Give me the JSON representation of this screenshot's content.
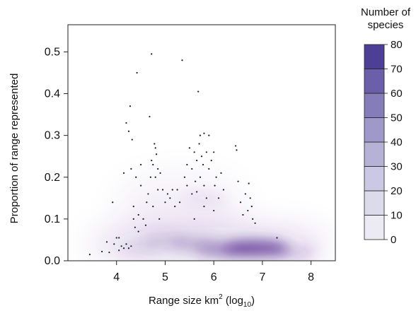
{
  "chart_data": {
    "type": "heatmap",
    "xlabel": {
      "prefix": "Range size km",
      "sup": "2",
      "mid": " (log",
      "sub": "10",
      "suffix": ")"
    },
    "ylabel": "Proportion of range represented",
    "xlim": [
      3.0,
      8.5
    ],
    "ylim": [
      0.0,
      0.565
    ],
    "x_ticks": [
      4,
      5,
      6,
      7,
      8
    ],
    "y_ticks": [
      0.0,
      0.1,
      0.2,
      0.3,
      0.4,
      0.5
    ],
    "x_tick_labels": [
      "4",
      "5",
      "6",
      "7",
      "8"
    ],
    "y_tick_labels": [
      "0.0",
      "0.1",
      "0.2",
      "0.3",
      "0.4",
      "0.5"
    ],
    "grid": false,
    "legend": {
      "title_lines": [
        "Number of",
        "species"
      ],
      "placement": "right",
      "levels": [
        0,
        10,
        20,
        30,
        40,
        50,
        60,
        70,
        80
      ],
      "level_labels": [
        "0",
        "10",
        "20",
        "30",
        "40",
        "50",
        "60",
        "70",
        "80"
      ],
      "colors": [
        "#ffffff",
        "#ecebf4",
        "#dcdbeb",
        "#cac8e2",
        "#b6b2d6",
        "#9f99c9",
        "#857db9",
        "#6a5fa8",
        "#4e3f96"
      ]
    },
    "density_color": "#54278f",
    "density_peaks": [
      {
        "x": 6.85,
        "y": 0.03,
        "level": 80
      },
      {
        "x": 6.2,
        "y": 0.025,
        "level": 45
      },
      {
        "x": 5.6,
        "y": 0.04,
        "level": 30
      },
      {
        "x": 5.0,
        "y": 0.05,
        "level": 20
      },
      {
        "x": 7.6,
        "y": 0.02,
        "level": 25
      },
      {
        "x": 4.5,
        "y": 0.03,
        "level": 15
      },
      {
        "x": 5.8,
        "y": 0.15,
        "level": 10
      }
    ],
    "points": [
      [
        3.45,
        0.015
      ],
      [
        3.7,
        0.022
      ],
      [
        3.8,
        0.045
      ],
      [
        3.85,
        0.02
      ],
      [
        3.95,
        0.04
      ],
      [
        4.0,
        0.055
      ],
      [
        4.05,
        0.025
      ],
      [
        4.05,
        0.055
      ],
      [
        4.1,
        0.035
      ],
      [
        4.15,
        0.03
      ],
      [
        4.2,
        0.04
      ],
      [
        4.25,
        0.03
      ],
      [
        4.3,
        0.035
      ],
      [
        3.92,
        0.14
      ],
      [
        4.15,
        0.21
      ],
      [
        4.2,
        0.33
      ],
      [
        4.25,
        0.31
      ],
      [
        4.28,
        0.37
      ],
      [
        4.3,
        0.22
      ],
      [
        4.32,
        0.29
      ],
      [
        4.35,
        0.13
      ],
      [
        4.35,
        0.1
      ],
      [
        4.38,
        0.08
      ],
      [
        4.4,
        0.2
      ],
      [
        4.42,
        0.45
      ],
      [
        4.45,
        0.11
      ],
      [
        4.45,
        0.07
      ],
      [
        4.5,
        0.18
      ],
      [
        4.5,
        0.23
      ],
      [
        4.55,
        0.1
      ],
      [
        4.6,
        0.085
      ],
      [
        4.62,
        0.14
      ],
      [
        4.65,
        0.16
      ],
      [
        4.68,
        0.345
      ],
      [
        4.7,
        0.2
      ],
      [
        4.72,
        0.495
      ],
      [
        4.72,
        0.24
      ],
      [
        4.75,
        0.23
      ],
      [
        4.75,
        0.13
      ],
      [
        4.78,
        0.28
      ],
      [
        4.8,
        0.2
      ],
      [
        4.8,
        0.27
      ],
      [
        4.82,
        0.255
      ],
      [
        4.85,
        0.22
      ],
      [
        4.85,
        0.17
      ],
      [
        4.88,
        0.1
      ],
      [
        4.9,
        0.21
      ],
      [
        4.95,
        0.17
      ],
      [
        5.0,
        0.14
      ],
      [
        5.05,
        0.16
      ],
      [
        5.1,
        0.15
      ],
      [
        5.15,
        0.17
      ],
      [
        5.2,
        0.13
      ],
      [
        5.25,
        0.17
      ],
      [
        5.3,
        0.14
      ],
      [
        5.35,
        0.48
      ],
      [
        5.4,
        0.2
      ],
      [
        5.45,
        0.23
      ],
      [
        5.45,
        0.18
      ],
      [
        5.5,
        0.27
      ],
      [
        5.55,
        0.16
      ],
      [
        5.55,
        0.22
      ],
      [
        5.6,
        0.26
      ],
      [
        5.62,
        0.19
      ],
      [
        5.65,
        0.24
      ],
      [
        5.65,
        0.165
      ],
      [
        5.68,
        0.405
      ],
      [
        5.7,
        0.28
      ],
      [
        5.72,
        0.3
      ],
      [
        5.72,
        0.2
      ],
      [
        5.75,
        0.25
      ],
      [
        5.78,
        0.23
      ],
      [
        5.8,
        0.305
      ],
      [
        5.8,
        0.18
      ],
      [
        5.85,
        0.26
      ],
      [
        5.85,
        0.15
      ],
      [
        5.9,
        0.22
      ],
      [
        5.9,
        0.3
      ],
      [
        5.95,
        0.24
      ],
      [
        6.0,
        0.26
      ],
      [
        6.02,
        0.18
      ],
      [
        6.05,
        0.2
      ],
      [
        6.1,
        0.15
      ],
      [
        6.15,
        0.21
      ],
      [
        6.2,
        0.17
      ],
      [
        5.6,
        0.1
      ],
      [
        5.8,
        0.13
      ],
      [
        6.0,
        0.12
      ],
      [
        6.45,
        0.275
      ],
      [
        6.47,
        0.265
      ],
      [
        6.5,
        0.19
      ],
      [
        6.55,
        0.14
      ],
      [
        6.6,
        0.11
      ],
      [
        6.65,
        0.16
      ],
      [
        6.7,
        0.12
      ],
      [
        6.72,
        0.185
      ],
      [
        6.75,
        0.15
      ],
      [
        6.78,
        0.13
      ],
      [
        6.8,
        0.1
      ],
      [
        6.85,
        0.09
      ],
      [
        7.3,
        0.055
      ]
    ]
  }
}
